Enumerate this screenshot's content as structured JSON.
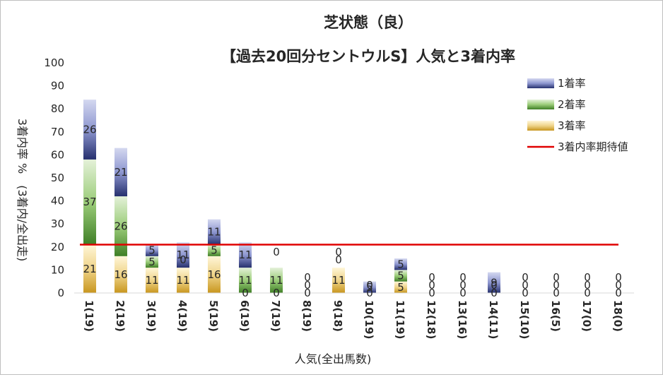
{
  "chart_data": {
    "type": "bar",
    "stacked": true,
    "title": "芝状態（良）",
    "subtitle": "【過去20回分セントウルS】人気と3着内率",
    "xlabel": "人気(全出馬数)",
    "ylabel": "3着内率 %　(3着内/全出走)",
    "ylim": [
      0,
      100
    ],
    "yticks": [
      0,
      10,
      20,
      30,
      40,
      50,
      60,
      70,
      80,
      90,
      100
    ],
    "categories": [
      "1(19)",
      "2(19)",
      "3(19)",
      "4(19)",
      "5(19)",
      "6(19)",
      "7(19)",
      "8(19)",
      "9(18)",
      "10(19)",
      "11(19)",
      "12(18)",
      "13(16)",
      "14(11)",
      "15(10)",
      "16(5)",
      "17(0)",
      "18(0)"
    ],
    "series": [
      {
        "name": "3着率",
        "color": "#d4a72c",
        "values": [
          21,
          16,
          11,
          11,
          16,
          0,
          0,
          0,
          11,
          0,
          5,
          0,
          0,
          0,
          0,
          0,
          0,
          0
        ]
      },
      {
        "name": "2着率",
        "color": "#5f9a3a",
        "values": [
          37,
          26,
          5,
          0,
          5,
          11,
          11,
          0,
          0,
          0,
          5,
          0,
          0,
          0,
          0,
          0,
          0,
          0
        ]
      },
      {
        "name": "1着率",
        "color": "#3a4a9a",
        "values": [
          26,
          21,
          5,
          11,
          11,
          11,
          0,
          0,
          0,
          5,
          5,
          0,
          0,
          9,
          0,
          0,
          0,
          0
        ]
      }
    ],
    "reference_line": {
      "name": "3着内率期待値",
      "value": 21,
      "color": "#e00000"
    },
    "legend_position": "top-right",
    "grid": false
  }
}
